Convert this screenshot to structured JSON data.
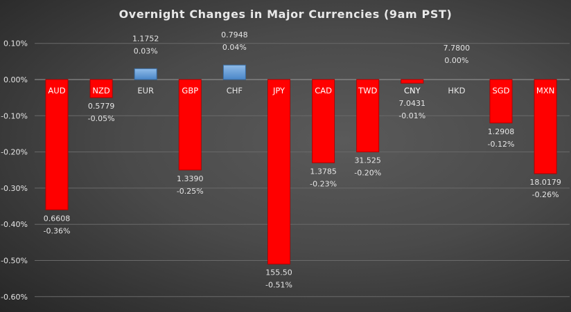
{
  "chart_data": {
    "type": "bar",
    "title": "Overnight Changes in Major Currencies (9am PST)",
    "xlabel": "",
    "ylabel": "",
    "ylim": [
      -0.6,
      0.1
    ],
    "yticks": [
      "0.10%",
      "0.00%",
      "-0.10%",
      "-0.20%",
      "-0.30%",
      "-0.40%",
      "-0.50%",
      "-0.60%"
    ],
    "grid": true,
    "categories": [
      "AUD",
      "NZD",
      "EUR",
      "GBP",
      "CHF",
      "JPY",
      "CAD",
      "TWD",
      "CNY",
      "HKD",
      "SGD",
      "MXN"
    ],
    "values": [
      -0.36,
      -0.05,
      0.03,
      -0.25,
      0.04,
      -0.51,
      -0.23,
      -0.2,
      -0.01,
      0.0,
      -0.12,
      -0.26
    ],
    "rates": [
      "0.6608",
      "0.5779",
      "1.1752",
      "1.3390",
      "0.7948",
      "155.50",
      "1.3785",
      "31.525",
      "7.0431",
      "7.7800",
      "1.2908",
      "18.0179"
    ],
    "pct_labels": [
      "-0.36%",
      "-0.05%",
      "0.03%",
      "-0.25%",
      "0.04%",
      "-0.51%",
      "-0.23%",
      "-0.20%",
      "-0.01%",
      "0.00%",
      "-0.12%",
      "-0.26%"
    ],
    "colors": {
      "negative": "#ff0000",
      "positive": "#5b9bd5",
      "text": "#e6e6e6",
      "grid": "#6a6a6a"
    }
  }
}
